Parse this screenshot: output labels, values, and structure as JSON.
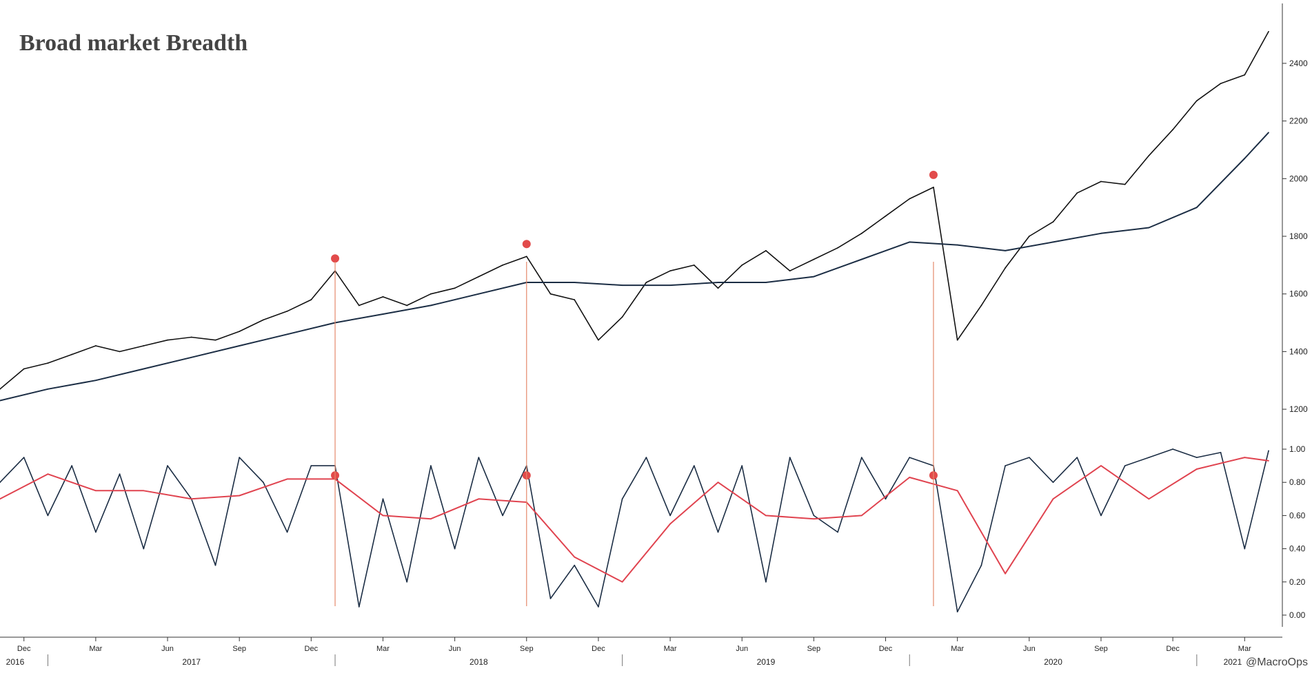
{
  "chart_data": {
    "title": "Broad market Breadth",
    "credit": "@MacroOps",
    "x_axis": {
      "start": "2016-11",
      "end": "2021-04",
      "month_ticks": [
        "Dec",
        "Mar",
        "Jun",
        "Sep",
        "Dec",
        "Mar",
        "Jun",
        "Sep",
        "Dec",
        "Mar",
        "Jun",
        "Sep",
        "Dec",
        "Mar",
        "Jun",
        "Sep",
        "Dec",
        "Mar"
      ],
      "year_labels": [
        "2016",
        "2017",
        "2018",
        "2019",
        "2020",
        "2021"
      ]
    },
    "panels": [
      {
        "type": "line",
        "ylim": [
          1150,
          2560
        ],
        "yticks": [
          1200,
          1400,
          1600,
          1800,
          2000,
          2200,
          2400
        ],
        "ytick_labels": [
          "1200",
          "1400",
          "1600",
          "1800",
          "2000",
          "2200",
          "2400"
        ],
        "series": [
          {
            "color": "#111111",
            "x": [
              "2016-11",
              "2016-12",
              "2017-01",
              "2017-02",
              "2017-03",
              "2017-04",
              "2017-05",
              "2017-06",
              "2017-07",
              "2017-08",
              "2017-09",
              "2017-10",
              "2017-11",
              "2017-12",
              "2018-01",
              "2018-02",
              "2018-03",
              "2018-04",
              "2018-05",
              "2018-06",
              "2018-07",
              "2018-08",
              "2018-09",
              "2018-10",
              "2018-11",
              "2018-12",
              "2019-01",
              "2019-02",
              "2019-03",
              "2019-04",
              "2019-05",
              "2019-06",
              "2019-07",
              "2019-08",
              "2019-09",
              "2019-10",
              "2019-11",
              "2019-12",
              "2020-01",
              "2020-02",
              "2020-03",
              "2020-04",
              "2020-05",
              "2020-06",
              "2020-07",
              "2020-08",
              "2020-09",
              "2020-10",
              "2020-11",
              "2020-12",
              "2021-01",
              "2021-02",
              "2021-03",
              "2021-04"
            ],
            "values": [
              1270,
              1340,
              1360,
              1390,
              1420,
              1400,
              1420,
              1440,
              1450,
              1440,
              1470,
              1510,
              1540,
              1580,
              1680,
              1560,
              1590,
              1560,
              1600,
              1620,
              1660,
              1700,
              1730,
              1600,
              1580,
              1440,
              1520,
              1640,
              1680,
              1700,
              1620,
              1700,
              1750,
              1680,
              1720,
              1760,
              1810,
              1870,
              1930,
              1970,
              1440,
              1560,
              1690,
              1800,
              1850,
              1950,
              1990,
              1980,
              2080,
              2170,
              2270,
              2330,
              2360,
              2510
            ]
          },
          {
            "color": "#1b2d44",
            "x": [
              "2016-11",
              "2017-01",
              "2017-03",
              "2017-05",
              "2017-07",
              "2017-09",
              "2017-11",
              "2018-01",
              "2018-03",
              "2018-05",
              "2018-07",
              "2018-09",
              "2018-11",
              "2019-01",
              "2019-03",
              "2019-05",
              "2019-07",
              "2019-09",
              "2019-11",
              "2020-01",
              "2020-03",
              "2020-05",
              "2020-07",
              "2020-09",
              "2020-11",
              "2021-01",
              "2021-03",
              "2021-04"
            ],
            "values": [
              1230,
              1270,
              1300,
              1340,
              1380,
              1420,
              1460,
              1500,
              1530,
              1560,
              1600,
              1640,
              1640,
              1630,
              1630,
              1640,
              1640,
              1660,
              1720,
              1780,
              1770,
              1750,
              1780,
              1810,
              1830,
              1900,
              2070,
              2160
            ]
          }
        ],
        "annotations": [
          {
            "marker": "dot",
            "color": "#e24b4b",
            "x": "2018-01"
          },
          {
            "marker": "dot",
            "color": "#e24b4b",
            "x": "2018-09"
          },
          {
            "marker": "dot",
            "color": "#e24b4b",
            "x": "2020-02"
          }
        ]
      },
      {
        "type": "line",
        "ylim": [
          -0.05,
          1.05
        ],
        "yticks": [
          0,
          0.2,
          0.4,
          0.6,
          0.8,
          1
        ],
        "ytick_labels": [
          "0.00",
          "0.20",
          "0.40",
          "0.60",
          "0.80",
          "1.00"
        ],
        "series": [
          {
            "color": "#1b2d44",
            "x": [
              "2016-11",
              "2016-12",
              "2017-01",
              "2017-02",
              "2017-03",
              "2017-04",
              "2017-05",
              "2017-06",
              "2017-07",
              "2017-08",
              "2017-09",
              "2017-10",
              "2017-11",
              "2017-12",
              "2018-01",
              "2018-02",
              "2018-03",
              "2018-04",
              "2018-05",
              "2018-06",
              "2018-07",
              "2018-08",
              "2018-09",
              "2018-10",
              "2018-11",
              "2018-12",
              "2019-01",
              "2019-02",
              "2019-03",
              "2019-04",
              "2019-05",
              "2019-06",
              "2019-07",
              "2019-08",
              "2019-09",
              "2019-10",
              "2019-11",
              "2019-12",
              "2020-01",
              "2020-02",
              "2020-03",
              "2020-04",
              "2020-05",
              "2020-06",
              "2020-07",
              "2020-08",
              "2020-09",
              "2020-10",
              "2020-11",
              "2020-12",
              "2021-01",
              "2021-02",
              "2021-03",
              "2021-04"
            ],
            "values": [
              0.8,
              0.95,
              0.6,
              0.9,
              0.5,
              0.85,
              0.4,
              0.9,
              0.7,
              0.3,
              0.95,
              0.8,
              0.5,
              0.9,
              0.9,
              0.05,
              0.7,
              0.2,
              0.9,
              0.4,
              0.95,
              0.6,
              0.9,
              0.1,
              0.3,
              0.05,
              0.7,
              0.95,
              0.6,
              0.9,
              0.5,
              0.9,
              0.2,
              0.95,
              0.6,
              0.5,
              0.95,
              0.7,
              0.95,
              0.9,
              0.02,
              0.3,
              0.9,
              0.95,
              0.8,
              0.95,
              0.6,
              0.9,
              0.95,
              1.0,
              0.95,
              0.98,
              0.4,
              0.99
            ]
          },
          {
            "color": "#e0434f",
            "x": [
              "2016-11",
              "2017-01",
              "2017-03",
              "2017-05",
              "2017-07",
              "2017-09",
              "2017-11",
              "2018-01",
              "2018-03",
              "2018-05",
              "2018-07",
              "2018-09",
              "2018-11",
              "2019-01",
              "2019-03",
              "2019-05",
              "2019-07",
              "2019-09",
              "2019-11",
              "2020-01",
              "2020-03",
              "2020-05",
              "2020-07",
              "2020-09",
              "2020-11",
              "2021-01",
              "2021-03",
              "2021-04"
            ],
            "values": [
              0.7,
              0.85,
              0.75,
              0.75,
              0.7,
              0.72,
              0.82,
              0.82,
              0.6,
              0.58,
              0.7,
              0.68,
              0.35,
              0.2,
              0.55,
              0.8,
              0.6,
              0.58,
              0.6,
              0.83,
              0.75,
              0.25,
              0.7,
              0.9,
              0.7,
              0.88,
              0.95,
              0.93
            ]
          }
        ],
        "annotations": [
          {
            "marker": "dot",
            "color": "#e24b4b",
            "x": "2018-01"
          },
          {
            "marker": "dot",
            "color": "#e24b4b",
            "x": "2018-09"
          },
          {
            "marker": "dot",
            "color": "#e24b4b",
            "x": "2020-02"
          }
        ]
      }
    ],
    "grid": false,
    "legend": "none"
  }
}
